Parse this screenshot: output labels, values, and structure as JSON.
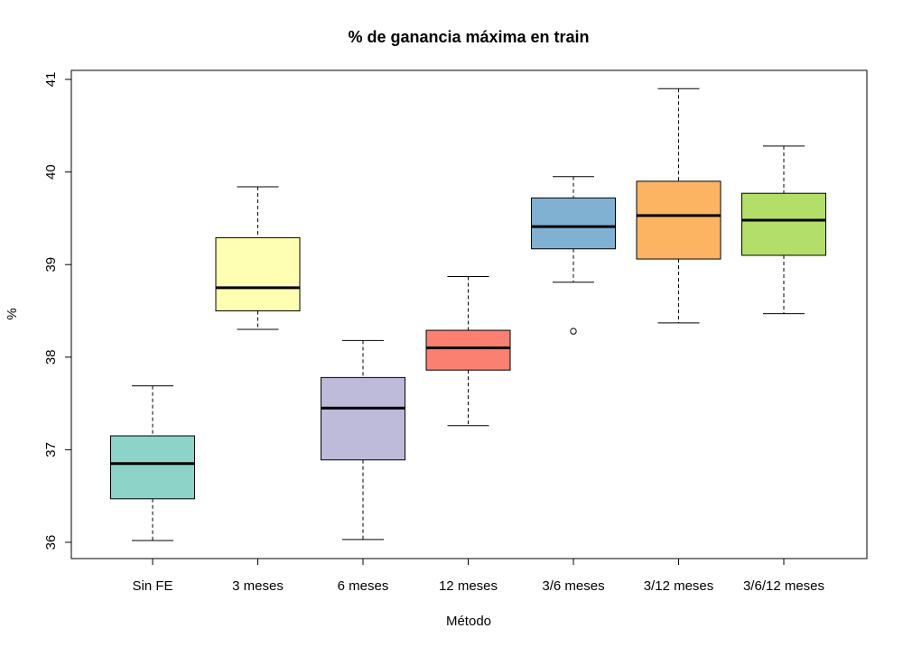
{
  "chart_data": {
    "type": "boxplot",
    "title": "% de ganancia máxima en train",
    "xlabel": "Método",
    "ylabel": "%",
    "ylim": [
      35.85,
      41.1
    ],
    "yticks": [
      "36",
      "37",
      "38",
      "39",
      "40",
      "41"
    ],
    "grid": false,
    "categories": [
      "Sin FE",
      "3 meses",
      "6 meses",
      "12 meses",
      "3/6 meses",
      "3/12 meses",
      "3/6/12 meses"
    ],
    "boxes": [
      {
        "min": 36.02,
        "q1": 36.47,
        "median": 36.85,
        "q3": 37.15,
        "max": 37.69,
        "outliers": [],
        "color": "#8DD3C7"
      },
      {
        "min": 38.3,
        "q1": 38.5,
        "median": 38.75,
        "q3": 39.29,
        "max": 39.84,
        "outliers": [],
        "color": "#FFFFB3"
      },
      {
        "min": 36.03,
        "q1": 36.89,
        "median": 37.45,
        "q3": 37.78,
        "max": 38.18,
        "outliers": [],
        "color": "#BEBADA"
      },
      {
        "min": 37.26,
        "q1": 37.86,
        "median": 38.1,
        "q3": 38.29,
        "max": 38.87,
        "outliers": [],
        "color": "#FB8072"
      },
      {
        "min": 38.81,
        "q1": 39.17,
        "median": 39.41,
        "q3": 39.72,
        "max": 39.95,
        "outliers": [
          38.28
        ],
        "color": "#80B1D3"
      },
      {
        "min": 38.37,
        "q1": 39.06,
        "median": 39.53,
        "q3": 39.9,
        "max": 40.9,
        "outliers": [],
        "color": "#FDB462"
      },
      {
        "min": 38.47,
        "q1": 39.1,
        "median": 39.48,
        "q3": 39.77,
        "max": 40.28,
        "outliers": [],
        "color": "#B3DE69"
      }
    ]
  }
}
